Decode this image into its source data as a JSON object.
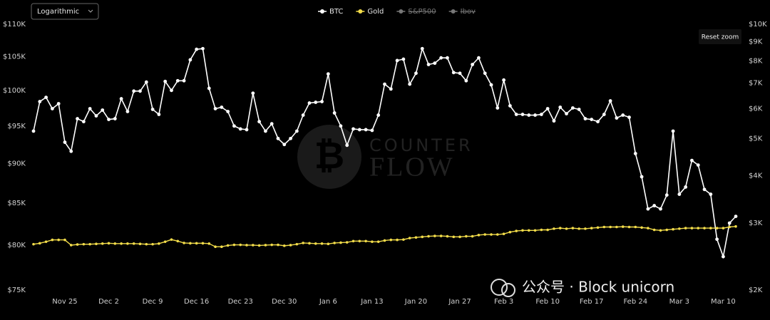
{
  "chart_data": {
    "type": "line",
    "log_scale": true,
    "grid": false,
    "legend_position": "top",
    "categories": [
      null,
      null,
      null,
      null,
      null,
      "Nov 25",
      null,
      null,
      null,
      null,
      null,
      null,
      "Dec 2",
      null,
      null,
      null,
      null,
      null,
      null,
      "Dec 9",
      null,
      null,
      null,
      null,
      null,
      null,
      "Dec 16",
      null,
      null,
      null,
      null,
      null,
      null,
      "Dec 23",
      null,
      null,
      null,
      null,
      null,
      null,
      "Dec 30",
      null,
      null,
      null,
      null,
      null,
      null,
      "Jan 6",
      null,
      null,
      null,
      null,
      null,
      null,
      "Jan 13",
      null,
      null,
      null,
      null,
      null,
      null,
      "Jan 20",
      null,
      null,
      null,
      null,
      null,
      null,
      "Jan 27",
      null,
      null,
      null,
      null,
      null,
      null,
      "Feb 3",
      null,
      null,
      null,
      null,
      null,
      null,
      "Feb 10",
      null,
      null,
      null,
      null,
      null,
      null,
      "Feb 17",
      null,
      null,
      null,
      null,
      null,
      null,
      "Feb 24",
      null,
      null,
      null,
      null,
      null,
      null,
      "Mar 3",
      null,
      null,
      null,
      null,
      null,
      null,
      "Mar 10",
      null,
      null
    ],
    "series": [
      {
        "name": "BTC",
        "color": "#ffffff",
        "axis": "y",
        "values": [
          94300,
          98400,
          99000,
          97400,
          98100,
          92800,
          91600,
          96000,
          95600,
          97400,
          96400,
          97200,
          95900,
          96000,
          98800,
          97000,
          99900,
          99900,
          101200,
          97300,
          96600,
          101300,
          100000,
          101400,
          101400,
          104500,
          106100,
          106200,
          100300,
          97400,
          97600,
          97000,
          95000,
          94600,
          94500,
          99600,
          95600,
          94300,
          95300,
          93300,
          92500,
          93300,
          94300,
          96500,
          98200,
          98300,
          98400,
          102400,
          96800,
          95000,
          92400,
          94600,
          94500,
          94500,
          94400,
          96500,
          100900,
          100200,
          104400,
          104600,
          100900,
          102500,
          106200,
          103800,
          104000,
          104800,
          104800,
          102600,
          102500,
          101400,
          103800,
          104800,
          102500,
          100800,
          97500,
          101500,
          97800,
          96600,
          96600,
          96500,
          96500,
          96600,
          97400,
          95700,
          97600,
          96700,
          97500,
          97300,
          96000,
          95900,
          95600,
          96600,
          98500,
          96100,
          96500,
          96200,
          91300,
          88300,
          84300,
          84700,
          84300,
          86000,
          94300,
          86100,
          87000,
          90400,
          89800,
          86700,
          86100,
          80700,
          78700,
          82600,
          83400
        ]
      },
      {
        "name": "Gold",
        "color": "#f2dc4a",
        "axis": "y2",
        "values": [
          2640,
          2655,
          2680,
          2710,
          2710,
          2710,
          2625,
          2635,
          2640,
          2640,
          2645,
          2650,
          2655,
          2650,
          2650,
          2650,
          2650,
          2645,
          2640,
          2640,
          2650,
          2680,
          2715,
          2690,
          2660,
          2655,
          2655,
          2655,
          2650,
          2600,
          2600,
          2620,
          2630,
          2630,
          2625,
          2625,
          2620,
          2625,
          2630,
          2630,
          2615,
          2625,
          2640,
          2660,
          2655,
          2650,
          2650,
          2645,
          2660,
          2665,
          2670,
          2690,
          2690,
          2690,
          2680,
          2680,
          2700,
          2710,
          2710,
          2715,
          2740,
          2750,
          2760,
          2770,
          2775,
          2775,
          2770,
          2760,
          2760,
          2770,
          2770,
          2790,
          2800,
          2800,
          2800,
          2810,
          2840,
          2860,
          2870,
          2870,
          2870,
          2880,
          2880,
          2900,
          2910,
          2900,
          2910,
          2900,
          2900,
          2910,
          2920,
          2930,
          2930,
          2930,
          2935,
          2930,
          2930,
          2920,
          2910,
          2880,
          2870,
          2880,
          2890,
          2900,
          2910,
          2910,
          2910,
          2910,
          2910,
          2910,
          2910,
          2930,
          2940
        ]
      }
    ],
    "hidden_series": [
      "S&P500",
      "Ibov"
    ],
    "ylim": [
      75000,
      110000
    ],
    "yticks": [
      {
        "value": 75000,
        "label": "$75K"
      },
      {
        "value": 80000,
        "label": "$80K"
      },
      {
        "value": 85000,
        "label": "$85K"
      },
      {
        "value": 90000,
        "label": "$90K"
      },
      {
        "value": 95000,
        "label": "$95K"
      },
      {
        "value": 100000,
        "label": "$100K"
      },
      {
        "value": 105000,
        "label": "$105K"
      },
      {
        "value": 110000,
        "label": "$110K"
      }
    ],
    "y2lim": [
      2000,
      10000
    ],
    "y2ticks": [
      {
        "value": 2000,
        "label": "$2K"
      },
      {
        "value": 3000,
        "label": "$3K"
      },
      {
        "value": 4000,
        "label": "$4K"
      },
      {
        "value": 5000,
        "label": "$5K"
      },
      {
        "value": 6000,
        "label": "$6K"
      },
      {
        "value": 7000,
        "label": "$7K"
      },
      {
        "value": 8000,
        "label": "$8K"
      },
      {
        "value": 9000,
        "label": "$9K"
      },
      {
        "value": 10000,
        "label": "$10K"
      }
    ]
  },
  "controls": {
    "scale_select": "Logarithmic",
    "reset_zoom": "Reset zoom"
  },
  "watermark": {
    "line1": "COUNTER",
    "line2": "FLOW"
  },
  "overlay_text": "公众号 · Block unicorn"
}
